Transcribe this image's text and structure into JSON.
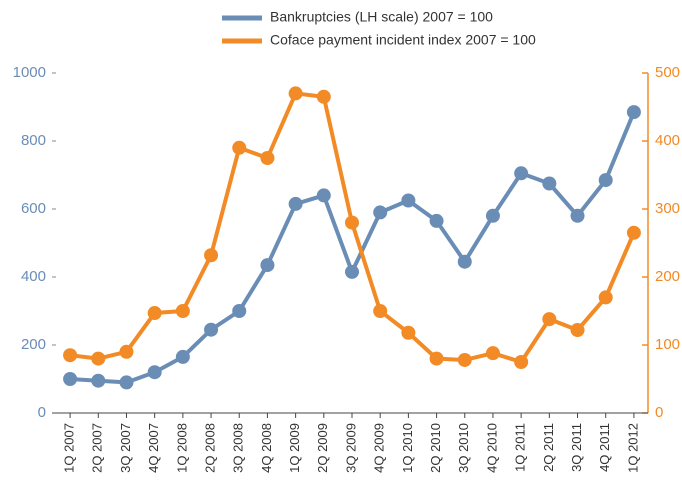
{
  "chart_data": {
    "type": "line",
    "categories": [
      "1Q 2007",
      "2Q 2007",
      "3Q 2007",
      "4Q 2007",
      "1Q 2008",
      "2Q 2008",
      "3Q 2008",
      "4Q 2008",
      "1Q 2009",
      "2Q 2009",
      "3Q 2009",
      "4Q 2009",
      "1Q 2010",
      "2Q 2010",
      "3Q 2010",
      "4Q 2010",
      "1Q 2011",
      "2Q 2011",
      "3Q 2011",
      "4Q 2011",
      "1Q 2012"
    ],
    "series": [
      {
        "name": "Bankruptcies (LH scale) 2007 = 100",
        "color": "#6a8db5",
        "axis": "y",
        "values": [
          100,
          95,
          90,
          120,
          165,
          245,
          300,
          435,
          615,
          640,
          415,
          590,
          625,
          565,
          445,
          580,
          705,
          675,
          580,
          685,
          885
        ]
      },
      {
        "name": "Coface payment incident index 2007 = 100",
        "color": "#f28a26",
        "axis": "y2",
        "values": [
          85,
          80,
          90,
          147,
          150,
          232,
          390,
          375,
          470,
          465,
          280,
          150,
          118,
          80,
          78,
          88,
          75,
          138,
          122,
          170,
          265
        ]
      }
    ],
    "ylim": [
      0,
      1000
    ],
    "yticks": [
      0,
      200,
      400,
      600,
      800,
      1000
    ],
    "y2lim": [
      0,
      500
    ],
    "y2ticks": [
      0,
      100,
      200,
      300,
      400,
      500
    ],
    "legend": "top"
  }
}
